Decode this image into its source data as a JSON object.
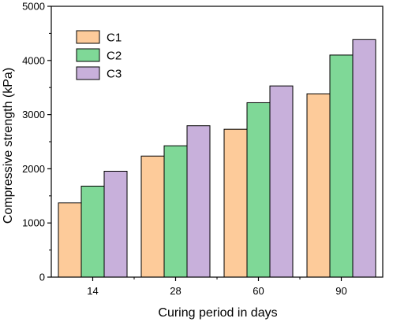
{
  "chart_data": {
    "type": "bar",
    "categories": [
      "14",
      "28",
      "60",
      "90"
    ],
    "series": [
      {
        "name": "C1",
        "values": [
          1370,
          2235,
          2730,
          3385
        ],
        "color": "#FDCB9A"
      },
      {
        "name": "C2",
        "values": [
          1680,
          2425,
          3220,
          4100
        ],
        "color": "#7FD897"
      },
      {
        "name": "C3",
        "values": [
          1955,
          2795,
          3530,
          4385
        ],
        "color": "#C8B0DB"
      }
    ],
    "xlabel": "Curing period in days",
    "ylabel": "Compressive strength (kPa)",
    "ylim": [
      0,
      5000
    ],
    "yticks": [
      "0",
      "1000",
      "2000",
      "3000",
      "4000",
      "5000"
    ],
    "yticks_values": [
      0,
      1000,
      2000,
      3000,
      4000,
      5000
    ],
    "grid": false,
    "legend_position": "top-left"
  }
}
